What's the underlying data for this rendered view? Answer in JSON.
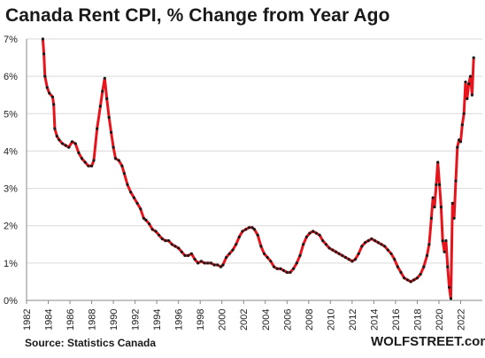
{
  "title": "Canada  Rent CPI, % Change from Year Ago",
  "source": "Source: Statistics Canada",
  "brand": "WOLFSTREET.com",
  "chart_data": {
    "type": "line",
    "title": "Canada  Rent CPI, % Change from Year Ago",
    "xlabel": "",
    "ylabel": "",
    "xlim": [
      1982,
      2024
    ],
    "ylim": [
      0,
      7
    ],
    "yticks": [
      "0%",
      "1%",
      "2%",
      "3%",
      "4%",
      "5%",
      "6%",
      "7%"
    ],
    "xticks": [
      "1982",
      "1984",
      "1986",
      "1988",
      "1990",
      "1992",
      "1994",
      "1996",
      "1998",
      "2000",
      "2002",
      "2004",
      "2006",
      "2008",
      "2010",
      "2012",
      "2014",
      "2016",
      "2018",
      "2020",
      "2022"
    ],
    "grid": "horizontal",
    "line_color": "#e8141b",
    "marker_color": "#1a1a1a",
    "series": [
      {
        "points": [
          [
            1983.5,
            7.0
          ],
          [
            1983.6,
            6.6
          ],
          [
            1983.7,
            6.0
          ],
          [
            1983.9,
            5.7
          ],
          [
            1984.1,
            5.55
          ],
          [
            1984.4,
            5.45
          ],
          [
            1984.5,
            5.25
          ],
          [
            1984.6,
            4.6
          ],
          [
            1984.8,
            4.4
          ],
          [
            1985.0,
            4.3
          ],
          [
            1985.3,
            4.2
          ],
          [
            1985.6,
            4.15
          ],
          [
            1985.9,
            4.1
          ],
          [
            1986.2,
            4.25
          ],
          [
            1986.5,
            4.2
          ],
          [
            1986.8,
            3.95
          ],
          [
            1987.1,
            3.8
          ],
          [
            1987.4,
            3.7
          ],
          [
            1987.7,
            3.6
          ],
          [
            1988.0,
            3.6
          ],
          [
            1988.2,
            3.75
          ],
          [
            1988.5,
            4.6
          ],
          [
            1988.8,
            5.2
          ],
          [
            1989.0,
            5.6
          ],
          [
            1989.2,
            5.95
          ],
          [
            1989.4,
            5.4
          ],
          [
            1989.6,
            4.9
          ],
          [
            1989.8,
            4.5
          ],
          [
            1990.0,
            4.1
          ],
          [
            1990.2,
            3.8
          ],
          [
            1990.5,
            3.75
          ],
          [
            1990.8,
            3.6
          ],
          [
            1991.0,
            3.4
          ],
          [
            1991.3,
            3.1
          ],
          [
            1991.6,
            2.9
          ],
          [
            1991.9,
            2.75
          ],
          [
            1992.2,
            2.6
          ],
          [
            1992.5,
            2.45
          ],
          [
            1992.8,
            2.2
          ],
          [
            1993.0,
            2.15
          ],
          [
            1993.3,
            2.05
          ],
          [
            1993.6,
            1.9
          ],
          [
            1993.9,
            1.85
          ],
          [
            1994.2,
            1.75
          ],
          [
            1994.5,
            1.65
          ],
          [
            1994.8,
            1.6
          ],
          [
            1995.1,
            1.6
          ],
          [
            1995.4,
            1.5
          ],
          [
            1995.7,
            1.45
          ],
          [
            1996.0,
            1.4
          ],
          [
            1996.3,
            1.3
          ],
          [
            1996.6,
            1.2
          ],
          [
            1996.9,
            1.2
          ],
          [
            1997.2,
            1.25
          ],
          [
            1997.5,
            1.1
          ],
          [
            1997.8,
            1.0
          ],
          [
            1998.1,
            1.05
          ],
          [
            1998.4,
            1.0
          ],
          [
            1998.7,
            1.0
          ],
          [
            1999.0,
            1.0
          ],
          [
            1999.3,
            0.95
          ],
          [
            1999.6,
            0.95
          ],
          [
            1999.9,
            0.9
          ],
          [
            2000.1,
            0.95
          ],
          [
            2000.4,
            1.15
          ],
          [
            2000.7,
            1.25
          ],
          [
            2001.0,
            1.35
          ],
          [
            2001.3,
            1.5
          ],
          [
            2001.6,
            1.7
          ],
          [
            2001.9,
            1.85
          ],
          [
            2002.2,
            1.9
          ],
          [
            2002.5,
            1.95
          ],
          [
            2002.8,
            1.95
          ],
          [
            2003.0,
            1.9
          ],
          [
            2003.3,
            1.75
          ],
          [
            2003.6,
            1.45
          ],
          [
            2003.9,
            1.25
          ],
          [
            2004.2,
            1.15
          ],
          [
            2004.5,
            1.05
          ],
          [
            2004.8,
            0.9
          ],
          [
            2005.1,
            0.85
          ],
          [
            2005.4,
            0.85
          ],
          [
            2005.7,
            0.8
          ],
          [
            2006.0,
            0.75
          ],
          [
            2006.3,
            0.75
          ],
          [
            2006.6,
            0.85
          ],
          [
            2006.9,
            1.0
          ],
          [
            2007.2,
            1.2
          ],
          [
            2007.5,
            1.5
          ],
          [
            2007.8,
            1.7
          ],
          [
            2008.1,
            1.8
          ],
          [
            2008.4,
            1.85
          ],
          [
            2008.7,
            1.8
          ],
          [
            2009.0,
            1.75
          ],
          [
            2009.3,
            1.6
          ],
          [
            2009.6,
            1.5
          ],
          [
            2009.9,
            1.4
          ],
          [
            2010.2,
            1.35
          ],
          [
            2010.5,
            1.3
          ],
          [
            2010.8,
            1.25
          ],
          [
            2011.1,
            1.2
          ],
          [
            2011.4,
            1.15
          ],
          [
            2011.7,
            1.1
          ],
          [
            2012.0,
            1.05
          ],
          [
            2012.3,
            1.1
          ],
          [
            2012.6,
            1.25
          ],
          [
            2012.9,
            1.45
          ],
          [
            2013.2,
            1.55
          ],
          [
            2013.5,
            1.6
          ],
          [
            2013.8,
            1.65
          ],
          [
            2014.1,
            1.6
          ],
          [
            2014.4,
            1.55
          ],
          [
            2014.7,
            1.5
          ],
          [
            2015.0,
            1.45
          ],
          [
            2015.3,
            1.35
          ],
          [
            2015.6,
            1.25
          ],
          [
            2015.9,
            1.1
          ],
          [
            2016.2,
            0.9
          ],
          [
            2016.5,
            0.75
          ],
          [
            2016.8,
            0.6
          ],
          [
            2017.1,
            0.55
          ],
          [
            2017.4,
            0.5
          ],
          [
            2017.7,
            0.55
          ],
          [
            2018.0,
            0.6
          ],
          [
            2018.3,
            0.7
          ],
          [
            2018.6,
            0.9
          ],
          [
            2018.9,
            1.2
          ],
          [
            2019.1,
            1.5
          ],
          [
            2019.3,
            2.2
          ],
          [
            2019.45,
            2.75
          ],
          [
            2019.6,
            2.5
          ],
          [
            2019.75,
            3.1
          ],
          [
            2019.9,
            3.7
          ],
          [
            2020.05,
            3.1
          ],
          [
            2020.2,
            2.5
          ],
          [
            2020.35,
            1.6
          ],
          [
            2020.5,
            1.3
          ],
          [
            2020.65,
            1.6
          ],
          [
            2020.8,
            0.9
          ],
          [
            2020.95,
            0.35
          ],
          [
            2021.1,
            0.05
          ],
          [
            2021.25,
            2.6
          ],
          [
            2021.4,
            2.2
          ],
          [
            2021.55,
            3.2
          ],
          [
            2021.7,
            4.1
          ],
          [
            2021.85,
            4.3
          ],
          [
            2022.0,
            4.25
          ],
          [
            2022.15,
            4.7
          ],
          [
            2022.3,
            5.0
          ],
          [
            2022.45,
            5.85
          ],
          [
            2022.6,
            5.4
          ],
          [
            2022.75,
            5.8
          ],
          [
            2022.9,
            6.0
          ],
          [
            2023.05,
            5.5
          ],
          [
            2023.2,
            6.5
          ]
        ]
      }
    ]
  }
}
